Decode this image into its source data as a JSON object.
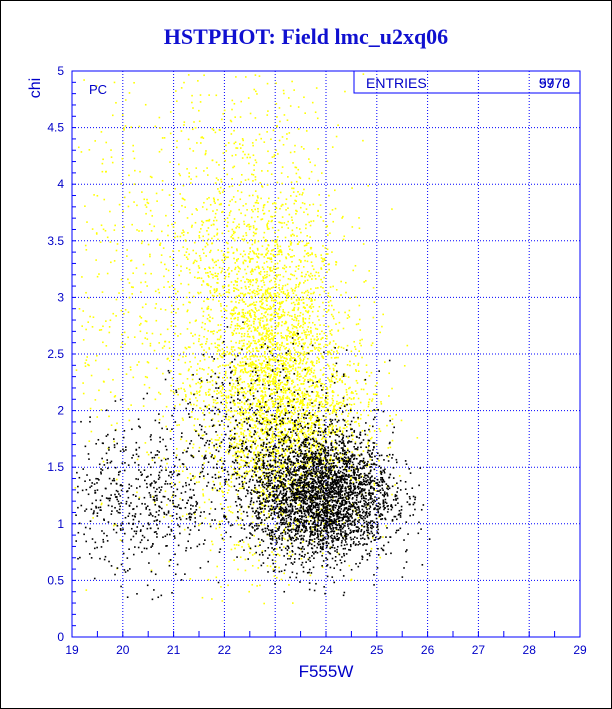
{
  "chart_data": {
    "type": "scatter",
    "title": "HSTPHOT: Field lmc_u2xq06",
    "xlabel": "F555W",
    "ylabel": "chi",
    "xlim": [
      19,
      29
    ],
    "ylim": [
      0,
      5
    ],
    "xticks": [
      "19",
      "20",
      "21",
      "22",
      "23",
      "24",
      "25",
      "26",
      "27",
      "28",
      "29"
    ],
    "yticks": [
      "0",
      "0.5",
      "1",
      "1.5",
      "2",
      "2.5",
      "3",
      "3.5",
      "4",
      "4.5",
      "5"
    ],
    "grid": true,
    "panel_label": "PC",
    "stats_box": {
      "label": "ENTRIES",
      "value_1": "9970",
      "value_2": "5773"
    },
    "series": [
      {
        "color": "#ffff00",
        "description_of_distribution": "broad cloud centered near F555W 22.5-23.5, chi 1.5-3.5, extending to chi 5",
        "clusters": [
          {
            "cx": 22.9,
            "cy": 2.3,
            "sx": 0.7,
            "sy": 0.7,
            "n": 2400
          },
          {
            "cx": 22.6,
            "cy": 3.3,
            "sx": 0.9,
            "sy": 0.8,
            "n": 900
          },
          {
            "cx": 21.0,
            "cy": 3.0,
            "sx": 1.3,
            "sy": 1.1,
            "n": 700
          },
          {
            "cx": 23.6,
            "cy": 1.8,
            "sx": 0.8,
            "sy": 0.45,
            "n": 900
          }
        ],
        "n_total": 4900
      },
      {
        "color": "#000000",
        "description_of_distribution": "dense clump near F555W 23-25, chi 0.7-1.8; sparse tail to bright end",
        "clusters": [
          {
            "cx": 23.9,
            "cy": 1.25,
            "sx": 0.7,
            "sy": 0.28,
            "n": 3200
          },
          {
            "cx": 20.3,
            "cy": 1.2,
            "sx": 0.9,
            "sy": 0.35,
            "n": 600
          },
          {
            "cx": 22.8,
            "cy": 1.8,
            "sx": 0.9,
            "sy": 0.4,
            "n": 500
          }
        ],
        "n_total": 4300
      }
    ],
    "grid_color": "#0000ff",
    "axis_color": "#0000ff",
    "label_color": "#0000c8"
  }
}
